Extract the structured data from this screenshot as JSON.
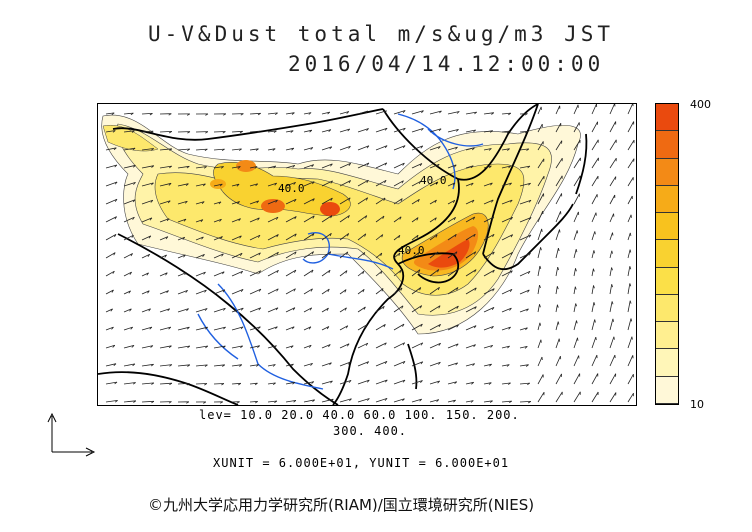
{
  "title_line1": "U-V&Dust total m/s&ug/m3 JST",
  "title_line2": "2016/04/14.12:00:00",
  "contour_labels": [
    "40.0",
    "40.0",
    "40.0"
  ],
  "colorbar": {
    "max_label": "400",
    "min_label": "10",
    "levels": [
      10,
      20,
      40,
      60,
      100,
      150,
      200,
      300,
      400
    ],
    "colors": [
      "#fff8d8",
      "#fff6b8",
      "#ffef90",
      "#fde86c",
      "#fbe048",
      "#f9d230",
      "#f8c21e",
      "#f6ab18",
      "#f38a16",
      "#ef6a12",
      "#ea4a0e"
    ]
  },
  "lev_line1": "lev= 10.0 20.0 40.0 60.0 100. 150. 200.",
  "lev_line2": "300. 400.",
  "units_line": "XUNIT = 6.000E+01, YUNIT = 6.000E+01",
  "credit": "©九州大学応用力学研究所(RIAM)/国立環境研究所(NIES)"
}
